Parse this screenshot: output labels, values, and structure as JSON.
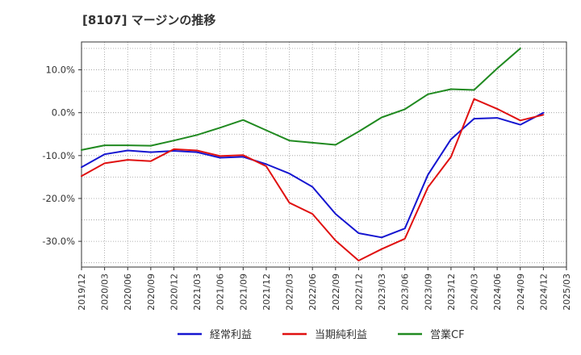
{
  "chart_data": {
    "type": "line",
    "title": "[8107]  マージンの推移",
    "xlabel": "",
    "ylabel": "",
    "x": [
      "2019/12",
      "2020/03",
      "2020/06",
      "2020/09",
      "2020/12",
      "2021/03",
      "2021/06",
      "2021/09",
      "2021/12",
      "2022/03",
      "2022/06",
      "2022/09",
      "2022/12",
      "2023/03",
      "2023/06",
      "2023/09",
      "2023/12",
      "2024/03",
      "2024/06",
      "2024/09",
      "2024/12",
      "2025/03"
    ],
    "yticks": [
      10,
      0,
      -10,
      -20,
      -30
    ],
    "ytick_labels": [
      "10.0%",
      "0.0%",
      "-10.0%",
      "-20.0%",
      "-30.0%"
    ],
    "ylim": [
      -36,
      16.5
    ],
    "grid": true,
    "legend_position": "bottom",
    "series": [
      {
        "name": "経常利益",
        "color": "#1515d0",
        "values": [
          -12.7,
          -9.7,
          -8.8,
          -9.2,
          -8.9,
          -9.2,
          -10.5,
          -10.3,
          -12.0,
          -14.2,
          -17.3,
          -23.6,
          -28.1,
          -29.1,
          -27.0,
          -14.5,
          -6.2,
          -1.4,
          -1.2,
          -2.8,
          0.0,
          null
        ]
      },
      {
        "name": "当期純利益",
        "color": "#e01010",
        "values": [
          -14.8,
          -11.8,
          -11.0,
          -11.3,
          -8.5,
          -8.8,
          -10.1,
          -9.9,
          -12.5,
          -21.0,
          -23.6,
          -29.8,
          -34.5,
          -31.8,
          -29.4,
          -17.4,
          -10.3,
          3.2,
          0.9,
          -1.8,
          -0.5,
          null
        ]
      },
      {
        "name": "営業CF",
        "color": "#208a20",
        "values": [
          -8.7,
          -7.6,
          -7.6,
          -7.7,
          -6.5,
          -5.2,
          -3.5,
          -1.7,
          -4.1,
          -6.5,
          -7.0,
          -7.5,
          -4.4,
          -1.1,
          0.8,
          4.3,
          5.5,
          5.3,
          10.3,
          15.0,
          null,
          null
        ]
      }
    ]
  }
}
